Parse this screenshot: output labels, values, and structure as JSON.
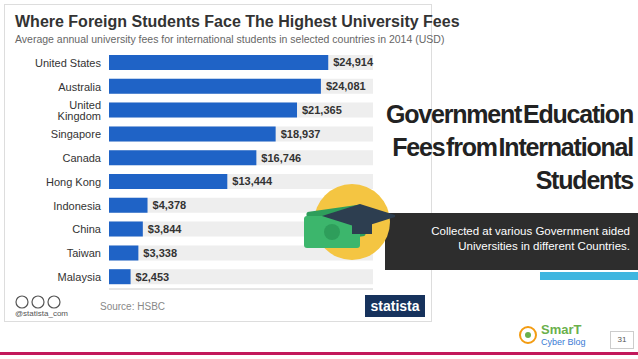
{
  "chart_data": {
    "type": "bar",
    "orientation": "horizontal",
    "title": "Where Foreign Students Face The Highest University Fees",
    "subtitle": "Average annual university fees for international students in selected countries in 2014 (USD)",
    "categories": [
      "United States",
      "Australia",
      "United Kingdom",
      "Singapore",
      "Canada",
      "Hong Kong",
      "Indonesia",
      "China",
      "Taiwan",
      "Malaysia"
    ],
    "values": [
      24914,
      24081,
      21365,
      18937,
      16746,
      13444,
      4378,
      3844,
      3338,
      2453
    ],
    "value_labels": [
      "$24,914",
      "$24,081",
      "$21,365",
      "$18,937",
      "$16,746",
      "$13,444",
      "$4,378",
      "$3,844",
      "$3,338",
      "$2,453"
    ],
    "data_labels": true,
    "color": "#1f63c6",
    "xlim": [
      0,
      30000
    ],
    "tick_labels": "y",
    "grid": false,
    "source": "Source: HSBC",
    "credit": "@statista_com",
    "brand": "statista"
  },
  "slide": {
    "title": "Government Education Fees from International Students",
    "caption": "Collected at various Government aided Universities in different Countries.",
    "page": "31",
    "logo": [
      "SmarT",
      "Cyber Blog"
    ]
  }
}
